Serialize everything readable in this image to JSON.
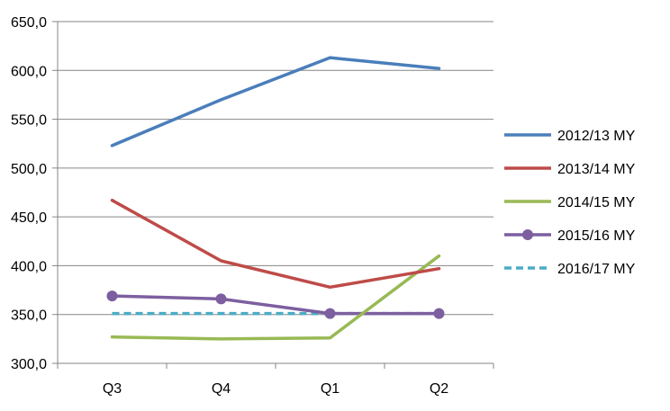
{
  "chart_data": {
    "type": "line",
    "title": "",
    "xlabel": "",
    "ylabel": "",
    "categories": [
      "Q3",
      "Q4",
      "Q1",
      "Q2"
    ],
    "ylim": [
      300,
      650
    ],
    "yticks": [
      "300,0",
      "350,0",
      "400,0",
      "450,0",
      "500,0",
      "550,0",
      "600,0",
      "650,0"
    ],
    "grid": "horizontal",
    "legend": "right",
    "series": [
      {
        "name": "2012/13 MY",
        "values": [
          523,
          570,
          613,
          602
        ],
        "color": "#4a7ebb",
        "style": "solid",
        "markers": false
      },
      {
        "name": "2013/14 MY",
        "values": [
          467,
          405,
          378,
          397
        ],
        "color": "#be4b48",
        "style": "solid",
        "markers": false
      },
      {
        "name": "2014/15 MY",
        "values": [
          327,
          325,
          326,
          410
        ],
        "color": "#98b954",
        "style": "solid",
        "markers": false
      },
      {
        "name": "2015/16 MY",
        "values": [
          369,
          366,
          351,
          351
        ],
        "color": "#7d5fa0",
        "style": "solid",
        "markers": true
      },
      {
        "name": "2016/17 MY",
        "values": [
          351,
          351,
          351,
          351
        ],
        "color": "#4bacc6",
        "style": "dashed",
        "markers": false
      }
    ]
  }
}
